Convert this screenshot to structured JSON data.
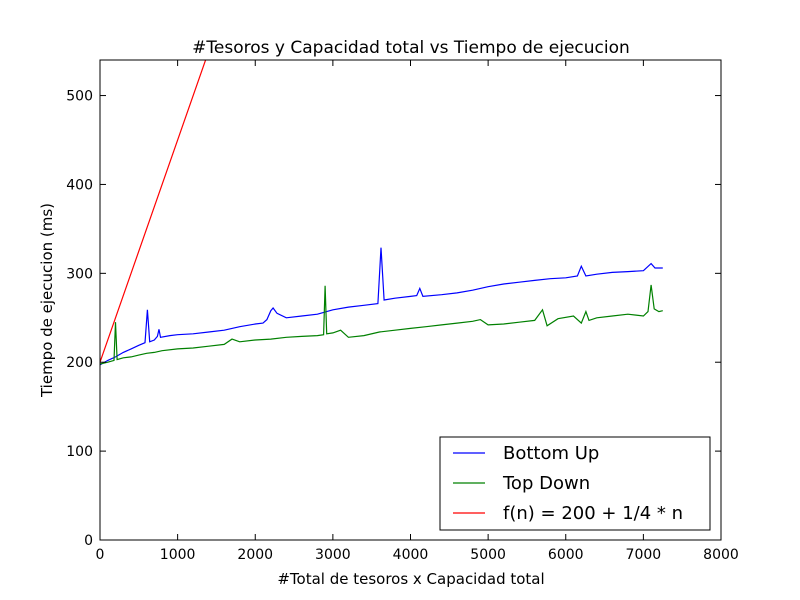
{
  "chart_data": {
    "type": "line",
    "title": "#Tesoros y Capacidad total vs Tiempo de ejecucion",
    "xlabel": "#Total de tesoros x Capacidad total",
    "ylabel": "Tiempo de ejecucion (ms)",
    "xlim": [
      0,
      8000
    ],
    "ylim": [
      0,
      540
    ],
    "xticks": [
      0,
      1000,
      2000,
      3000,
      4000,
      5000,
      6000,
      7000,
      8000
    ],
    "yticks": [
      0,
      100,
      200,
      300,
      400,
      500
    ],
    "grid": false,
    "legend_position": "lower-right",
    "series": [
      {
        "name": "Bottom Up",
        "color": "#0000ff",
        "points": [
          [
            0,
            197
          ],
          [
            100,
            202
          ],
          [
            200,
            206
          ],
          [
            300,
            211
          ],
          [
            400,
            215
          ],
          [
            500,
            219
          ],
          [
            580,
            222
          ],
          [
            610,
            259
          ],
          [
            640,
            223
          ],
          [
            700,
            225
          ],
          [
            740,
            229
          ],
          [
            760,
            237
          ],
          [
            780,
            228
          ],
          [
            900,
            230
          ],
          [
            1000,
            231
          ],
          [
            1200,
            232
          ],
          [
            1400,
            234
          ],
          [
            1600,
            236
          ],
          [
            1800,
            240
          ],
          [
            2000,
            243
          ],
          [
            2100,
            244
          ],
          [
            2150,
            248
          ],
          [
            2200,
            258
          ],
          [
            2230,
            261
          ],
          [
            2280,
            255
          ],
          [
            2400,
            250
          ],
          [
            2600,
            252
          ],
          [
            2800,
            254
          ],
          [
            2880,
            256
          ],
          [
            3000,
            259
          ],
          [
            3200,
            262
          ],
          [
            3400,
            264
          ],
          [
            3580,
            266
          ],
          [
            3620,
            329
          ],
          [
            3660,
            270
          ],
          [
            3800,
            272
          ],
          [
            4000,
            274
          ],
          [
            4080,
            275
          ],
          [
            4120,
            283
          ],
          [
            4160,
            274
          ],
          [
            4400,
            276
          ],
          [
            4600,
            278
          ],
          [
            4800,
            281
          ],
          [
            5000,
            285
          ],
          [
            5200,
            288
          ],
          [
            5400,
            290
          ],
          [
            5600,
            292
          ],
          [
            5800,
            294
          ],
          [
            6000,
            295
          ],
          [
            6150,
            297
          ],
          [
            6200,
            308
          ],
          [
            6260,
            297
          ],
          [
            6400,
            299
          ],
          [
            6600,
            301
          ],
          [
            6800,
            302
          ],
          [
            7000,
            303
          ],
          [
            7100,
            311
          ],
          [
            7150,
            306
          ],
          [
            7250,
            306
          ]
        ]
      },
      {
        "name": "Top Down",
        "color": "#008000",
        "points": [
          [
            0,
            198
          ],
          [
            100,
            200
          ],
          [
            180,
            202
          ],
          [
            200,
            245
          ],
          [
            220,
            203
          ],
          [
            300,
            205
          ],
          [
            400,
            206
          ],
          [
            500,
            208
          ],
          [
            600,
            210
          ],
          [
            700,
            211
          ],
          [
            800,
            213
          ],
          [
            1000,
            215
          ],
          [
            1200,
            216
          ],
          [
            1400,
            218
          ],
          [
            1600,
            220
          ],
          [
            1700,
            226
          ],
          [
            1800,
            223
          ],
          [
            2000,
            225
          ],
          [
            2200,
            226
          ],
          [
            2400,
            228
          ],
          [
            2600,
            229
          ],
          [
            2800,
            230
          ],
          [
            2880,
            231
          ],
          [
            2900,
            286
          ],
          [
            2920,
            232
          ],
          [
            3000,
            233
          ],
          [
            3100,
            236
          ],
          [
            3200,
            228
          ],
          [
            3400,
            230
          ],
          [
            3600,
            234
          ],
          [
            3800,
            236
          ],
          [
            4000,
            238
          ],
          [
            4200,
            240
          ],
          [
            4400,
            242
          ],
          [
            4600,
            244
          ],
          [
            4800,
            246
          ],
          [
            4900,
            248
          ],
          [
            5000,
            242
          ],
          [
            5200,
            243
          ],
          [
            5400,
            245
          ],
          [
            5600,
            247
          ],
          [
            5700,
            259
          ],
          [
            5760,
            241
          ],
          [
            5900,
            249
          ],
          [
            6100,
            252
          ],
          [
            6200,
            244
          ],
          [
            6260,
            257
          ],
          [
            6300,
            247
          ],
          [
            6400,
            250
          ],
          [
            6600,
            252
          ],
          [
            6800,
            254
          ],
          [
            7000,
            252
          ],
          [
            7060,
            257
          ],
          [
            7100,
            287
          ],
          [
            7140,
            260
          ],
          [
            7200,
            257
          ],
          [
            7250,
            258
          ]
        ]
      },
      {
        "name": "f(n) = 200 + 1/4 * n",
        "color": "#ff0000",
        "points": [
          [
            0,
            200
          ],
          [
            1400,
            550
          ]
        ]
      }
    ]
  }
}
